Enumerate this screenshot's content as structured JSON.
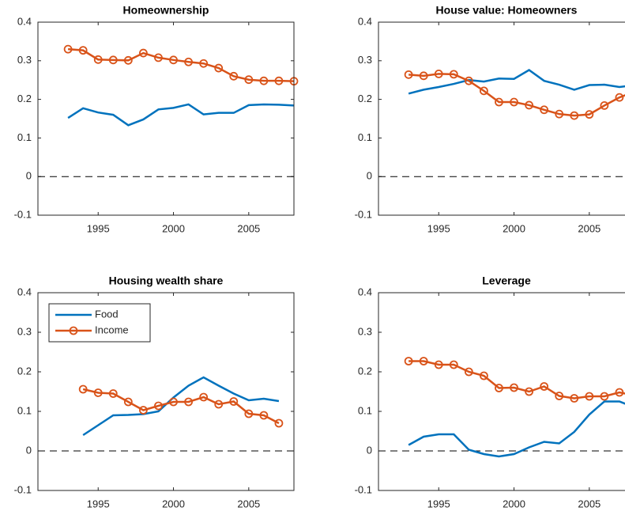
{
  "chart_data": [
    {
      "type": "line",
      "title": "Homeownership",
      "x": [
        1993,
        1994,
        1995,
        1996,
        1997,
        1998,
        1999,
        2000,
        2001,
        2002,
        2003,
        2004,
        2005,
        2006,
        2007,
        2008
      ],
      "series": [
        {
          "color": "#0072BD",
          "marker": false,
          "values": [
            0.152,
            0.177,
            0.166,
            0.16,
            0.133,
            0.148,
            0.174,
            0.178,
            0.187,
            0.161,
            0.165,
            0.165,
            0.185,
            0.187,
            0.186,
            0.184
          ]
        },
        {
          "color": "#D95319",
          "marker": true,
          "values": [
            0.33,
            0.327,
            0.303,
            0.302,
            0.301,
            0.32,
            0.308,
            0.302,
            0.297,
            0.293,
            0.281,
            0.26,
            0.251,
            0.248,
            0.248,
            0.247
          ]
        }
      ],
      "xlim": [
        1991,
        2008
      ],
      "ylim": [
        -0.1,
        0.4
      ],
      "xticks": [
        1995,
        2000,
        2005
      ],
      "yticks": [
        -0.1,
        0,
        0.1,
        0.2,
        0.3,
        0.4
      ],
      "reference_line": 0
    },
    {
      "type": "line",
      "title": "House value: Homeowners",
      "x": [
        1993,
        1994,
        1995,
        1996,
        1997,
        1998,
        1999,
        2000,
        2001,
        2002,
        2003,
        2004,
        2005,
        2006,
        2007,
        2008
      ],
      "series": [
        {
          "color": "#0072BD",
          "marker": false,
          "values": [
            0.215,
            0.225,
            0.232,
            0.24,
            0.25,
            0.246,
            0.254,
            0.253,
            0.276,
            0.248,
            0.238,
            0.225,
            0.237,
            0.238,
            0.232,
            0.237
          ]
        },
        {
          "color": "#D95319",
          "marker": true,
          "values": [
            0.264,
            0.261,
            0.266,
            0.265,
            0.248,
            0.222,
            0.193,
            0.193,
            0.185,
            0.173,
            0.162,
            0.158,
            0.161,
            0.184,
            0.205,
            0.22
          ]
        }
      ],
      "xlim": [
        1991,
        2008
      ],
      "ylim": [
        -0.1,
        0.4
      ],
      "xticks": [
        1995,
        2000,
        2005
      ],
      "yticks": [
        -0.1,
        0,
        0.1,
        0.2,
        0.3,
        0.4
      ],
      "reference_line": 0
    },
    {
      "type": "line",
      "title": "Housing wealth share",
      "x": [
        1994,
        1995,
        1996,
        1997,
        1998,
        1999,
        2000,
        2001,
        2002,
        2003,
        2004,
        2005,
        2006,
        2007
      ],
      "series": [
        {
          "name": "Food",
          "color": "#0072BD",
          "marker": false,
          "values": [
            0.04,
            0.065,
            0.09,
            0.091,
            0.093,
            0.1,
            0.135,
            0.165,
            0.186,
            0.165,
            0.145,
            0.128,
            0.132,
            0.126
          ]
        },
        {
          "name": "Income",
          "color": "#D95319",
          "marker": true,
          "values": [
            0.156,
            0.147,
            0.145,
            0.124,
            0.103,
            0.114,
            0.124,
            0.124,
            0.136,
            0.118,
            0.125,
            0.094,
            0.09,
            0.07
          ]
        }
      ],
      "xlim": [
        1991,
        2008
      ],
      "ylim": [
        -0.1,
        0.4
      ],
      "xticks": [
        1995,
        2000,
        2005
      ],
      "yticks": [
        -0.1,
        0,
        0.1,
        0.2,
        0.3,
        0.4
      ],
      "reference_line": 0,
      "legend": "upper left"
    },
    {
      "type": "line",
      "title": "Leverage",
      "x": [
        1993,
        1994,
        1995,
        1996,
        1997,
        1998,
        1999,
        2000,
        2001,
        2002,
        2003,
        2004,
        2005,
        2006,
        2007,
        2008
      ],
      "series": [
        {
          "color": "#0072BD",
          "marker": false,
          "values": [
            0.015,
            0.036,
            0.042,
            0.042,
            0.003,
            -0.008,
            -0.014,
            -0.008,
            0.009,
            0.023,
            0.019,
            0.048,
            0.092,
            0.125,
            0.125,
            0.11
          ]
        },
        {
          "color": "#D95319",
          "marker": true,
          "values": [
            0.227,
            0.227,
            0.218,
            0.218,
            0.2,
            0.19,
            0.159,
            0.16,
            0.15,
            0.163,
            0.139,
            0.133,
            0.138,
            0.138,
            0.148,
            0.14
          ]
        }
      ],
      "xlim": [
        1991,
        2008
      ],
      "ylim": [
        -0.1,
        0.4
      ],
      "xticks": [
        1995,
        2000,
        2005
      ],
      "yticks": [
        -0.1,
        0,
        0.1,
        0.2,
        0.3,
        0.4
      ],
      "reference_line": 0
    }
  ]
}
